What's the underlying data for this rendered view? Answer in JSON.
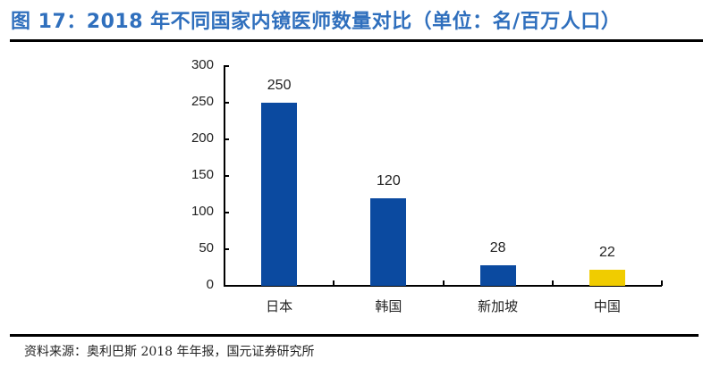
{
  "title": "图 17：2018 年不同国家内镜医师数量对比（单位：名/百万人口）",
  "source": "资料来源：奥利巴斯 2018 年年报，国元证券研究所",
  "colors": {
    "title": "#2f6fbd",
    "bar_default": "#0b4aa0",
    "bar_highlight": "#f0cc00"
  },
  "chart_data": {
    "type": "bar",
    "title": "2018 年不同国家内镜医师数量对比（单位：名/百万人口）",
    "xlabel": "",
    "ylabel": "",
    "categories": [
      "日本",
      "韩国",
      "新加坡",
      "中国"
    ],
    "values": [
      250,
      120,
      28,
      22
    ],
    "data_labels": [
      "250",
      "120",
      "28",
      "22"
    ],
    "bar_colors": [
      "#0b4aa0",
      "#0b4aa0",
      "#0b4aa0",
      "#f0cc00"
    ],
    "ylim": [
      0,
      300
    ],
    "yticks": [
      0,
      50,
      100,
      150,
      200,
      250,
      300
    ],
    "ytick_labels": [
      "0",
      "50",
      "100",
      "150",
      "200",
      "250",
      "300"
    ],
    "grid": false,
    "legend": null
  }
}
